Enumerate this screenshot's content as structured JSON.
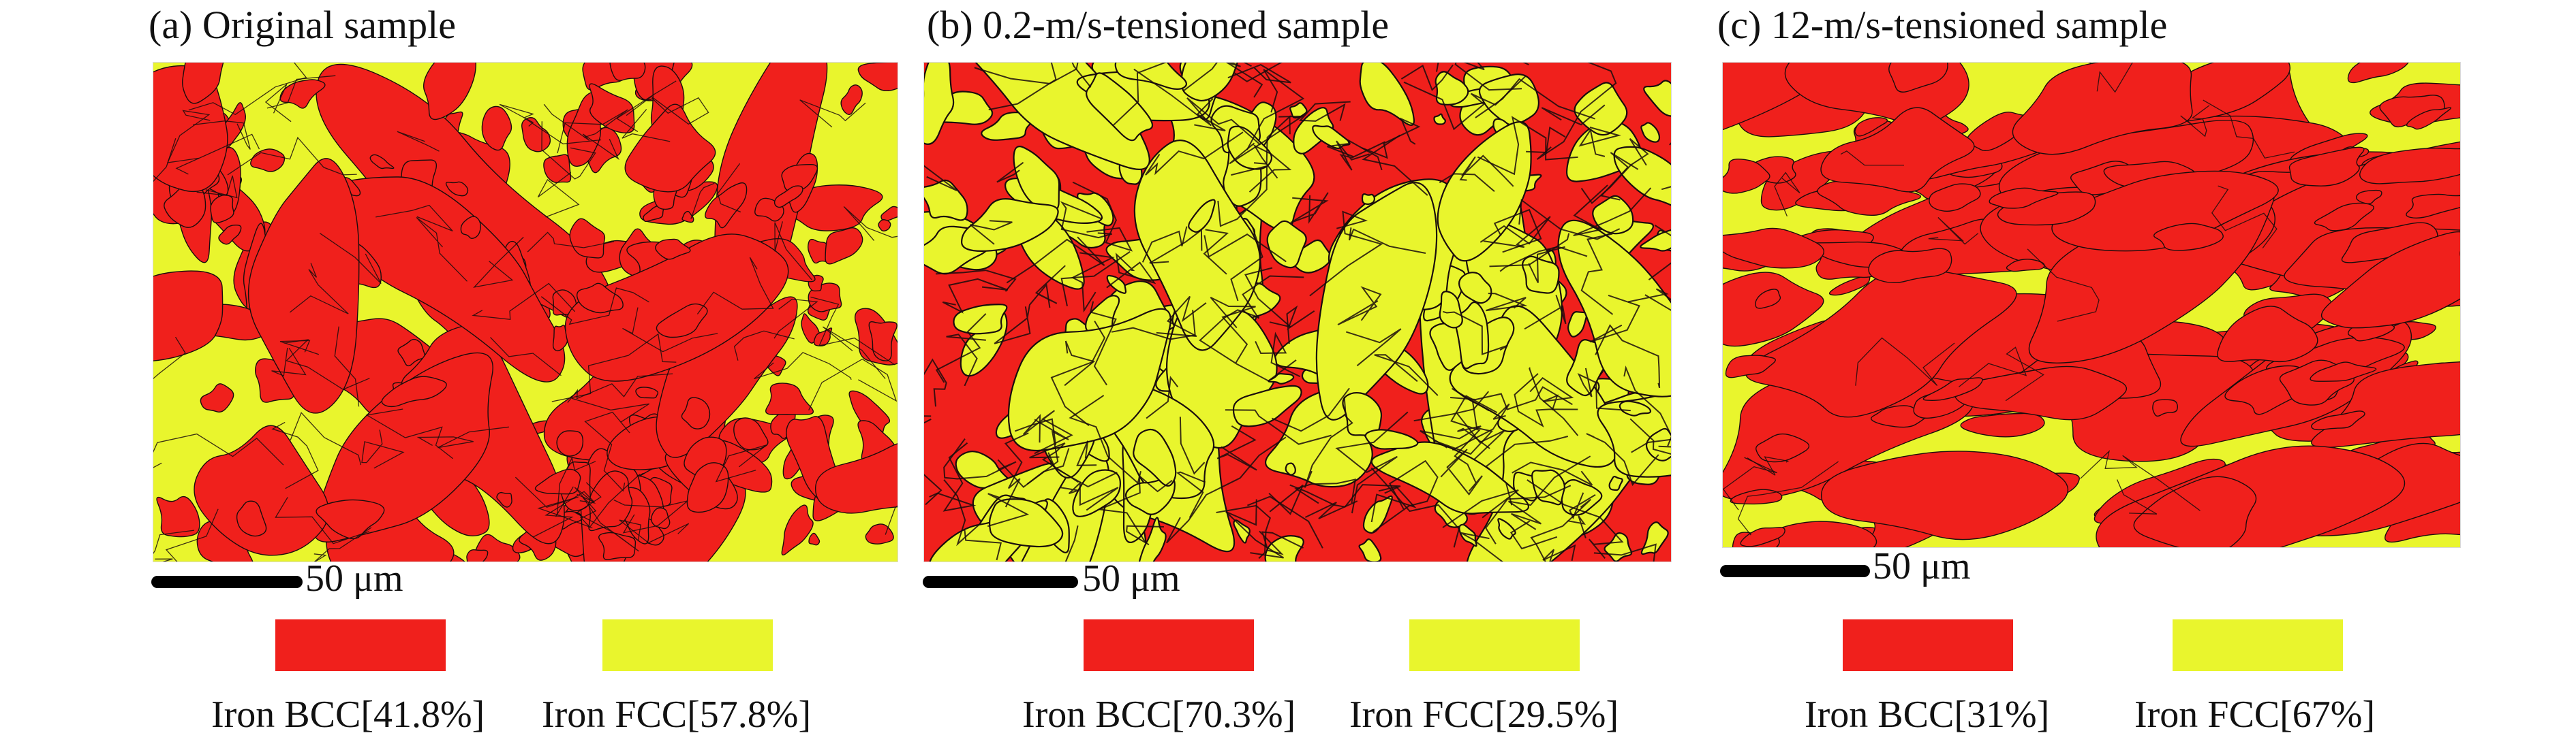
{
  "colors": {
    "bcc": "#f0201c",
    "fcc": "#e9f52d",
    "boundary": "#1a0d0d"
  },
  "panels": [
    {
      "title": "(a) Original sample",
      "scale_label": "50 μm",
      "bcc_label": "Iron BCC[41.8%]",
      "fcc_label": "Iron FCC[57.8%]",
      "bcc_fraction": 0.418,
      "fcc_fraction": 0.578
    },
    {
      "title": "(b) 0.2-m/s-tensioned sample",
      "scale_label": "50 μm",
      "bcc_label": "Iron BCC[70.3%]",
      "fcc_label": "Iron FCC[29.5%]",
      "bcc_fraction": 0.703,
      "fcc_fraction": 0.295
    },
    {
      "title": "(c) 12-m/s-tensioned sample",
      "scale_label": "50 μm",
      "bcc_label": "Iron BCC[31%]",
      "fcc_label": "Iron FCC[67%]",
      "bcc_fraction": 0.31,
      "fcc_fraction": 0.67
    }
  ]
}
